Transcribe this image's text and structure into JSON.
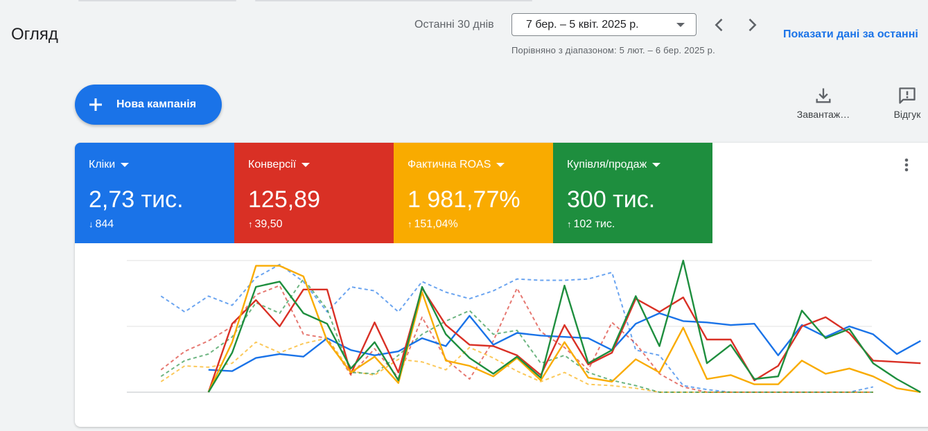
{
  "header": {
    "title": "Огляд",
    "date_range_label": "Останні 30 днів",
    "date_range_value": "7 бер. – 5 квіт. 2025 р.",
    "compare_text": "Порівняно з діапазоном: 5 лют. – 6 бер. 2025 р.",
    "show_data_link": "Показати дані за останні"
  },
  "actions": {
    "new_campaign_label": "Нова кампанія",
    "download_label": "Завантаж…",
    "feedback_label": "Відгук"
  },
  "metrics": [
    {
      "name": "Кліки",
      "value": "2,73 тис.",
      "delta": "844",
      "direction": "down",
      "color": "#1a73e8"
    },
    {
      "name": "Конверсії",
      "value": "125,89",
      "delta": "39,50",
      "direction": "up",
      "color": "#d93025"
    },
    {
      "name": "Фактична ROAS",
      "value": "1 981,77%",
      "delta": "151,04%",
      "direction": "up",
      "color": "#f9ab00"
    },
    {
      "name": "Купівля/продаж",
      "value": "300 тис.",
      "delta": "102 тис.",
      "direction": "up",
      "color": "#1e8e3e"
    }
  ],
  "icons": {
    "prev": "chevron-left-icon",
    "next": "chevron-right-icon",
    "download": "download-icon",
    "feedback": "feedback-icon",
    "more": "more-vert-icon",
    "add": "plus-icon"
  },
  "chart_data": {
    "type": "line",
    "ylim": [
      0,
      100
    ],
    "grid": true,
    "series": [
      {
        "color": "#1a73e8",
        "style": "solid",
        "values": [
          null,
          null,
          null,
          17,
          16,
          26,
          29,
          27,
          41,
          32,
          28,
          31,
          41,
          35,
          58,
          36,
          45,
          43,
          42,
          41,
          32,
          52,
          60,
          54,
          53,
          51,
          52,
          28,
          51,
          42,
          50,
          44,
          29,
          39
        ]
      },
      {
        "color": "#d93025",
        "style": "solid",
        "values": [
          null,
          null,
          null,
          0,
          52,
          70,
          50,
          78,
          78,
          14,
          53,
          15,
          79,
          51,
          36,
          35,
          28,
          13,
          51,
          21,
          30,
          71,
          61,
          72,
          40,
          40,
          9,
          20,
          50,
          57,
          45,
          24,
          23,
          22
        ]
      },
      {
        "color": "#f9ab00",
        "style": "solid",
        "values": [
          null,
          null,
          null,
          0,
          38,
          96,
          96,
          88,
          39,
          15,
          27,
          7,
          76,
          24,
          20,
          12,
          26,
          9,
          38,
          11,
          8,
          25,
          15,
          49,
          10,
          13,
          6,
          6,
          24,
          14,
          18,
          12,
          3,
          0
        ]
      },
      {
        "color": "#1e8e3e",
        "style": "solid",
        "values": [
          null,
          null,
          null,
          0,
          30,
          80,
          84,
          60,
          52,
          18,
          38,
          9,
          80,
          44,
          26,
          14,
          27,
          11,
          81,
          22,
          32,
          73,
          35,
          100,
          22,
          36,
          10,
          12,
          62,
          41,
          48,
          22,
          10,
          0
        ]
      },
      {
        "color": "#1a73e8",
        "style": "dashed",
        "values": [
          null,
          73,
          61,
          73,
          66,
          87,
          97,
          84,
          61,
          80,
          77,
          61,
          84,
          76,
          71,
          77,
          86,
          85,
          85,
          86,
          91,
          32,
          28,
          5,
          2,
          0,
          0,
          0,
          0,
          0,
          0,
          4
        ]
      },
      {
        "color": "#d93025",
        "style": "dashed",
        "values": [
          null,
          17,
          31,
          39,
          50,
          74,
          81,
          44,
          41,
          13,
          33,
          11,
          57,
          25,
          10,
          39,
          79,
          46,
          34,
          17,
          53,
          37,
          14,
          4,
          0,
          0,
          0,
          0,
          0,
          0,
          0,
          0
        ]
      },
      {
        "color": "#f9ab00",
        "style": "dashed",
        "values": [
          null,
          8,
          20,
          19,
          22,
          38,
          30,
          37,
          41,
          16,
          13,
          25,
          23,
          17,
          34,
          26,
          16,
          8,
          15,
          6,
          5,
          3,
          0,
          0,
          0,
          0,
          0,
          0,
          0,
          0,
          0,
          0
        ]
      },
      {
        "color": "#1e8e3e",
        "style": "dashed",
        "values": [
          null,
          12,
          24,
          29,
          42,
          68,
          60,
          86,
          63,
          15,
          14,
          28,
          44,
          54,
          62,
          44,
          47,
          22,
          28,
          15,
          9,
          5,
          0,
          0,
          0,
          0,
          0,
          0,
          0,
          0,
          0,
          0
        ]
      }
    ]
  }
}
